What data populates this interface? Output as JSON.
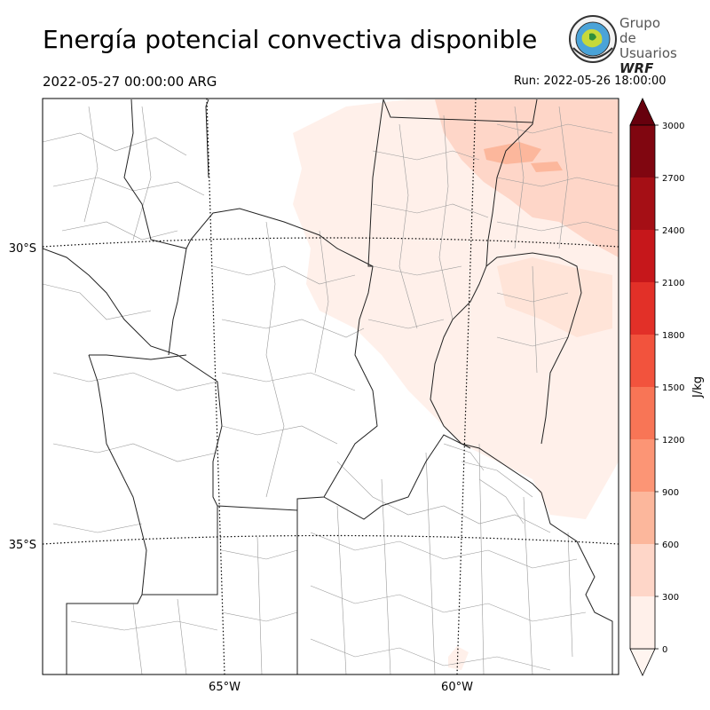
{
  "header": {
    "title": "Energía potencial convectiva disponible",
    "valid_time": "2022-05-27 00:00:00 ARG",
    "run_time": "Run: 2022-05-26 18:00:00"
  },
  "logo": {
    "line1": "Grupo de",
    "line2": "Usuarios",
    "line3": "WRF"
  },
  "map": {
    "lat_labels": [
      "30°S",
      "35°S"
    ],
    "lon_labels": [
      "65°W",
      "60°W"
    ]
  },
  "colorbar": {
    "unit": "J/kg",
    "ticks": [
      "0",
      "300",
      "600",
      "900",
      "1200",
      "1500",
      "1800",
      "2100",
      "2400",
      "2700",
      "3000"
    ],
    "colors": [
      "#fff0ea",
      "#fed6c8",
      "#fcb79c",
      "#fc9575",
      "#f87556",
      "#f2533d",
      "#e23028",
      "#c6171b",
      "#a50f15",
      "#800610"
    ],
    "extend_max_color": "#67000d",
    "extend_min_color": "#fff5f0"
  }
}
